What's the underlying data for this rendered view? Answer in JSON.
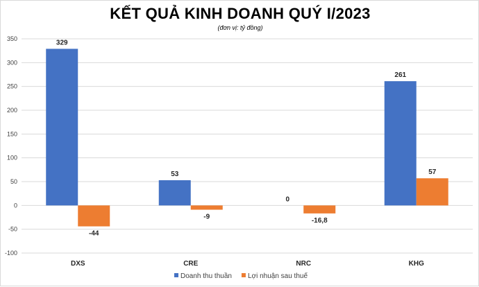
{
  "chart_data": {
    "type": "bar",
    "title": "KẾT QUẢ KINH DOANH QUÝ I/2023",
    "subtitle": "(đơn vị: tỷ đồng)",
    "categories": [
      "DXS",
      "CRE",
      "NRC",
      "KHG"
    ],
    "series": [
      {
        "name": "Doanh thu thuần",
        "color": "#4472c4",
        "values": [
          329,
          53,
          0,
          261
        ],
        "labels": [
          "329",
          "53",
          "0",
          "261"
        ]
      },
      {
        "name": "Lợi nhuận sau thuế",
        "color": "#ed7d31",
        "values": [
          -44,
          -9,
          -16.8,
          57
        ],
        "labels": [
          "-44",
          "-9",
          "-16,8",
          "57"
        ]
      }
    ],
    "ylim": [
      -100,
      350
    ],
    "yticks": [
      350,
      300,
      250,
      200,
      150,
      100,
      50,
      0,
      -50,
      -100
    ],
    "grid": true,
    "legend": "bottom"
  }
}
